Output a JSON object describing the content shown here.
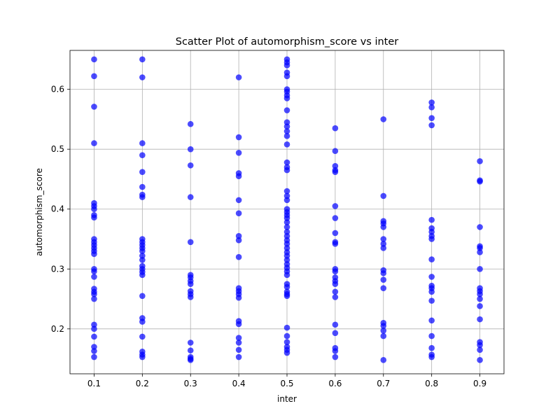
{
  "chart_data": {
    "type": "scatter",
    "title": "Scatter Plot of automorphism_score vs inter",
    "xlabel": "inter",
    "ylabel": "automorphism_score",
    "xlim": [
      0.05,
      0.95
    ],
    "ylim": [
      0.125,
      0.665
    ],
    "xticks": [
      "0.1",
      "0.2",
      "0.3",
      "0.4",
      "0.5",
      "0.6",
      "0.7",
      "0.8",
      "0.9"
    ],
    "yticks": [
      "0.2",
      "0.3",
      "0.4",
      "0.5",
      "0.6"
    ],
    "grid": true,
    "marker_color": "#0000ff",
    "marker_alpha": 0.7,
    "series": [
      {
        "points": [
          [
            0.1,
            0.65
          ],
          [
            0.1,
            0.622
          ],
          [
            0.1,
            0.571
          ],
          [
            0.1,
            0.51
          ],
          [
            0.1,
            0.41
          ],
          [
            0.1,
            0.405
          ],
          [
            0.1,
            0.4
          ],
          [
            0.1,
            0.39
          ],
          [
            0.1,
            0.386
          ],
          [
            0.1,
            0.35
          ],
          [
            0.1,
            0.345
          ],
          [
            0.1,
            0.34
          ],
          [
            0.1,
            0.335
          ],
          [
            0.1,
            0.33
          ],
          [
            0.1,
            0.325
          ],
          [
            0.1,
            0.3
          ],
          [
            0.1,
            0.296
          ],
          [
            0.1,
            0.287
          ],
          [
            0.1,
            0.267
          ],
          [
            0.1,
            0.262
          ],
          [
            0.1,
            0.258
          ],
          [
            0.1,
            0.25
          ],
          [
            0.1,
            0.207
          ],
          [
            0.1,
            0.2
          ],
          [
            0.1,
            0.187
          ],
          [
            0.1,
            0.17
          ],
          [
            0.1,
            0.163
          ],
          [
            0.1,
            0.153
          ],
          [
            0.2,
            0.65
          ],
          [
            0.2,
            0.62
          ],
          [
            0.2,
            0.51
          ],
          [
            0.2,
            0.49
          ],
          [
            0.2,
            0.462
          ],
          [
            0.2,
            0.437
          ],
          [
            0.2,
            0.424
          ],
          [
            0.2,
            0.42
          ],
          [
            0.2,
            0.35
          ],
          [
            0.2,
            0.345
          ],
          [
            0.2,
            0.34
          ],
          [
            0.2,
            0.335
          ],
          [
            0.2,
            0.33
          ],
          [
            0.2,
            0.322
          ],
          [
            0.2,
            0.315
          ],
          [
            0.2,
            0.305
          ],
          [
            0.2,
            0.3
          ],
          [
            0.2,
            0.295
          ],
          [
            0.2,
            0.29
          ],
          [
            0.2,
            0.255
          ],
          [
            0.2,
            0.218
          ],
          [
            0.2,
            0.212
          ],
          [
            0.2,
            0.187
          ],
          [
            0.2,
            0.162
          ],
          [
            0.2,
            0.157
          ],
          [
            0.2,
            0.153
          ],
          [
            0.3,
            0.542
          ],
          [
            0.3,
            0.5
          ],
          [
            0.3,
            0.473
          ],
          [
            0.3,
            0.42
          ],
          [
            0.3,
            0.345
          ],
          [
            0.3,
            0.29
          ],
          [
            0.3,
            0.286
          ],
          [
            0.3,
            0.28
          ],
          [
            0.3,
            0.275
          ],
          [
            0.3,
            0.263
          ],
          [
            0.3,
            0.258
          ],
          [
            0.3,
            0.253
          ],
          [
            0.3,
            0.177
          ],
          [
            0.3,
            0.164
          ],
          [
            0.3,
            0.153
          ],
          [
            0.3,
            0.15
          ],
          [
            0.3,
            0.148
          ],
          [
            0.4,
            0.62
          ],
          [
            0.4,
            0.52
          ],
          [
            0.4,
            0.494
          ],
          [
            0.4,
            0.46
          ],
          [
            0.4,
            0.455
          ],
          [
            0.4,
            0.415
          ],
          [
            0.4,
            0.393
          ],
          [
            0.4,
            0.355
          ],
          [
            0.4,
            0.348
          ],
          [
            0.4,
            0.32
          ],
          [
            0.4,
            0.268
          ],
          [
            0.4,
            0.263
          ],
          [
            0.4,
            0.258
          ],
          [
            0.4,
            0.252
          ],
          [
            0.4,
            0.213
          ],
          [
            0.4,
            0.208
          ],
          [
            0.4,
            0.185
          ],
          [
            0.4,
            0.177
          ],
          [
            0.4,
            0.165
          ],
          [
            0.4,
            0.153
          ],
          [
            0.5,
            0.65
          ],
          [
            0.5,
            0.645
          ],
          [
            0.5,
            0.64
          ],
          [
            0.5,
            0.628
          ],
          [
            0.5,
            0.622
          ],
          [
            0.5,
            0.6
          ],
          [
            0.5,
            0.596
          ],
          [
            0.5,
            0.59
          ],
          [
            0.5,
            0.585
          ],
          [
            0.5,
            0.565
          ],
          [
            0.5,
            0.545
          ],
          [
            0.5,
            0.538
          ],
          [
            0.5,
            0.53
          ],
          [
            0.5,
            0.522
          ],
          [
            0.5,
            0.508
          ],
          [
            0.5,
            0.478
          ],
          [
            0.5,
            0.47
          ],
          [
            0.5,
            0.465
          ],
          [
            0.5,
            0.43
          ],
          [
            0.5,
            0.422
          ],
          [
            0.5,
            0.415
          ],
          [
            0.5,
            0.4
          ],
          [
            0.5,
            0.395
          ],
          [
            0.5,
            0.39
          ],
          [
            0.5,
            0.385
          ],
          [
            0.5,
            0.378
          ],
          [
            0.5,
            0.37
          ],
          [
            0.5,
            0.362
          ],
          [
            0.5,
            0.355
          ],
          [
            0.5,
            0.348
          ],
          [
            0.5,
            0.342
          ],
          [
            0.5,
            0.335
          ],
          [
            0.5,
            0.328
          ],
          [
            0.5,
            0.322
          ],
          [
            0.5,
            0.315
          ],
          [
            0.5,
            0.308
          ],
          [
            0.5,
            0.302
          ],
          [
            0.5,
            0.296
          ],
          [
            0.5,
            0.29
          ],
          [
            0.5,
            0.275
          ],
          [
            0.5,
            0.27
          ],
          [
            0.5,
            0.262
          ],
          [
            0.5,
            0.258
          ],
          [
            0.5,
            0.255
          ],
          [
            0.5,
            0.202
          ],
          [
            0.5,
            0.188
          ],
          [
            0.5,
            0.178
          ],
          [
            0.5,
            0.17
          ],
          [
            0.5,
            0.165
          ],
          [
            0.5,
            0.16
          ],
          [
            0.6,
            0.535
          ],
          [
            0.6,
            0.497
          ],
          [
            0.6,
            0.472
          ],
          [
            0.6,
            0.465
          ],
          [
            0.6,
            0.462
          ],
          [
            0.6,
            0.405
          ],
          [
            0.6,
            0.385
          ],
          [
            0.6,
            0.36
          ],
          [
            0.6,
            0.345
          ],
          [
            0.6,
            0.342
          ],
          [
            0.6,
            0.3
          ],
          [
            0.6,
            0.296
          ],
          [
            0.6,
            0.286
          ],
          [
            0.6,
            0.28
          ],
          [
            0.6,
            0.275
          ],
          [
            0.6,
            0.262
          ],
          [
            0.6,
            0.253
          ],
          [
            0.6,
            0.207
          ],
          [
            0.6,
            0.193
          ],
          [
            0.6,
            0.168
          ],
          [
            0.6,
            0.163
          ],
          [
            0.6,
            0.153
          ],
          [
            0.7,
            0.55
          ],
          [
            0.7,
            0.422
          ],
          [
            0.7,
            0.38
          ],
          [
            0.7,
            0.376
          ],
          [
            0.7,
            0.37
          ],
          [
            0.7,
            0.35
          ],
          [
            0.7,
            0.342
          ],
          [
            0.7,
            0.335
          ],
          [
            0.7,
            0.298
          ],
          [
            0.7,
            0.293
          ],
          [
            0.7,
            0.282
          ],
          [
            0.7,
            0.268
          ],
          [
            0.7,
            0.21
          ],
          [
            0.7,
            0.205
          ],
          [
            0.7,
            0.197
          ],
          [
            0.7,
            0.188
          ],
          [
            0.7,
            0.148
          ],
          [
            0.8,
            0.578
          ],
          [
            0.8,
            0.57
          ],
          [
            0.8,
            0.552
          ],
          [
            0.8,
            0.54
          ],
          [
            0.8,
            0.382
          ],
          [
            0.8,
            0.368
          ],
          [
            0.8,
            0.362
          ],
          [
            0.8,
            0.355
          ],
          [
            0.8,
            0.35
          ],
          [
            0.8,
            0.316
          ],
          [
            0.8,
            0.287
          ],
          [
            0.8,
            0.272
          ],
          [
            0.8,
            0.268
          ],
          [
            0.8,
            0.262
          ],
          [
            0.8,
            0.247
          ],
          [
            0.8,
            0.214
          ],
          [
            0.8,
            0.188
          ],
          [
            0.8,
            0.168
          ],
          [
            0.8,
            0.157
          ],
          [
            0.8,
            0.153
          ],
          [
            0.9,
            0.48
          ],
          [
            0.9,
            0.448
          ],
          [
            0.9,
            0.446
          ],
          [
            0.9,
            0.37
          ],
          [
            0.9,
            0.338
          ],
          [
            0.9,
            0.335
          ],
          [
            0.9,
            0.328
          ],
          [
            0.9,
            0.3
          ],
          [
            0.9,
            0.268
          ],
          [
            0.9,
            0.263
          ],
          [
            0.9,
            0.258
          ],
          [
            0.9,
            0.25
          ],
          [
            0.9,
            0.238
          ],
          [
            0.9,
            0.216
          ],
          [
            0.9,
            0.178
          ],
          [
            0.9,
            0.173
          ],
          [
            0.9,
            0.165
          ],
          [
            0.9,
            0.148
          ]
        ]
      }
    ]
  }
}
